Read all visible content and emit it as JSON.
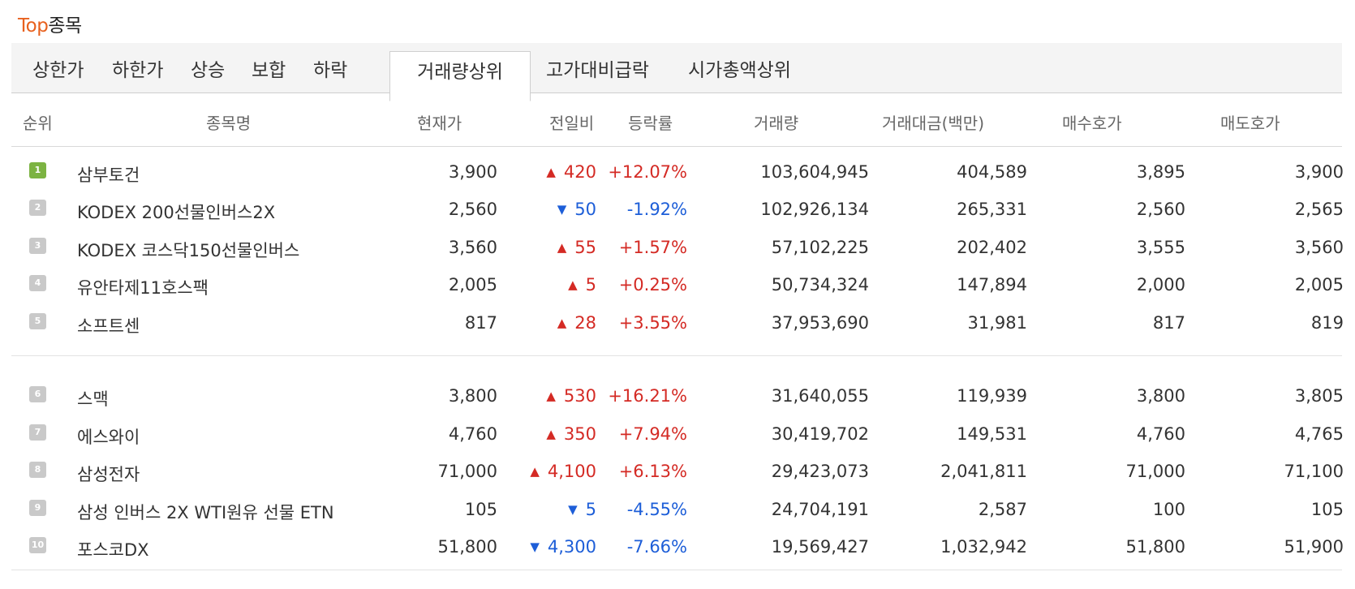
{
  "title": {
    "accent": "Top",
    "rest": "종목"
  },
  "tabs": [
    "상한가",
    "하한가",
    "상승",
    "보합",
    "하락",
    "거래량상위",
    "고가대비급락",
    "시가총액상위"
  ],
  "active_tab": "거래량상위",
  "columns": [
    "순위",
    "종목명",
    "현재가",
    "전일비",
    "등락률",
    "거래량",
    "거래대금(백만)",
    "매수호가",
    "매도호가"
  ],
  "colors": {
    "accent": "#e8611e",
    "up": "#d42a24",
    "down": "#1d5ed8",
    "rank_first": "#7cb342",
    "rank": "#c9c9c9"
  },
  "rows": [
    {
      "rank": "1",
      "name": "삼부토건",
      "price": "3,900",
      "dir": "up",
      "change": "420",
      "rate": "+12.07%",
      "volume": "103,604,945",
      "amount": "404,589",
      "bid": "3,895",
      "ask": "3,900"
    },
    {
      "rank": "2",
      "name": "KODEX 200선물인버스2X",
      "price": "2,560",
      "dir": "down",
      "change": "50",
      "rate": "-1.92%",
      "volume": "102,926,134",
      "amount": "265,331",
      "bid": "2,560",
      "ask": "2,565"
    },
    {
      "rank": "3",
      "name": "KODEX 코스닥150선물인버스",
      "price": "3,560",
      "dir": "up",
      "change": "55",
      "rate": "+1.57%",
      "volume": "57,102,225",
      "amount": "202,402",
      "bid": "3,555",
      "ask": "3,560"
    },
    {
      "rank": "4",
      "name": "유안타제11호스팩",
      "price": "2,005",
      "dir": "up",
      "change": "5",
      "rate": "+0.25%",
      "volume": "50,734,324",
      "amount": "147,894",
      "bid": "2,000",
      "ask": "2,005"
    },
    {
      "rank": "5",
      "name": "소프트센",
      "price": "817",
      "dir": "up",
      "change": "28",
      "rate": "+3.55%",
      "volume": "37,953,690",
      "amount": "31,981",
      "bid": "817",
      "ask": "819"
    },
    {
      "rank": "6",
      "name": "스맥",
      "price": "3,800",
      "dir": "up",
      "change": "530",
      "rate": "+16.21%",
      "volume": "31,640,055",
      "amount": "119,939",
      "bid": "3,800",
      "ask": "3,805"
    },
    {
      "rank": "7",
      "name": "에스와이",
      "price": "4,760",
      "dir": "up",
      "change": "350",
      "rate": "+7.94%",
      "volume": "30,419,702",
      "amount": "149,531",
      "bid": "4,760",
      "ask": "4,765"
    },
    {
      "rank": "8",
      "name": "삼성전자",
      "price": "71,000",
      "dir": "up",
      "change": "4,100",
      "rate": "+6.13%",
      "volume": "29,423,073",
      "amount": "2,041,811",
      "bid": "71,000",
      "ask": "71,100"
    },
    {
      "rank": "9",
      "name": "삼성 인버스 2X WTI원유 선물 ETN",
      "price": "105",
      "dir": "down",
      "change": "5",
      "rate": "-4.55%",
      "volume": "24,704,191",
      "amount": "2,587",
      "bid": "100",
      "ask": "105"
    },
    {
      "rank": "10",
      "name": "포스코DX",
      "price": "51,800",
      "dir": "down",
      "change": "4,300",
      "rate": "-7.66%",
      "volume": "19,569,427",
      "amount": "1,032,942",
      "bid": "51,800",
      "ask": "51,900"
    }
  ]
}
